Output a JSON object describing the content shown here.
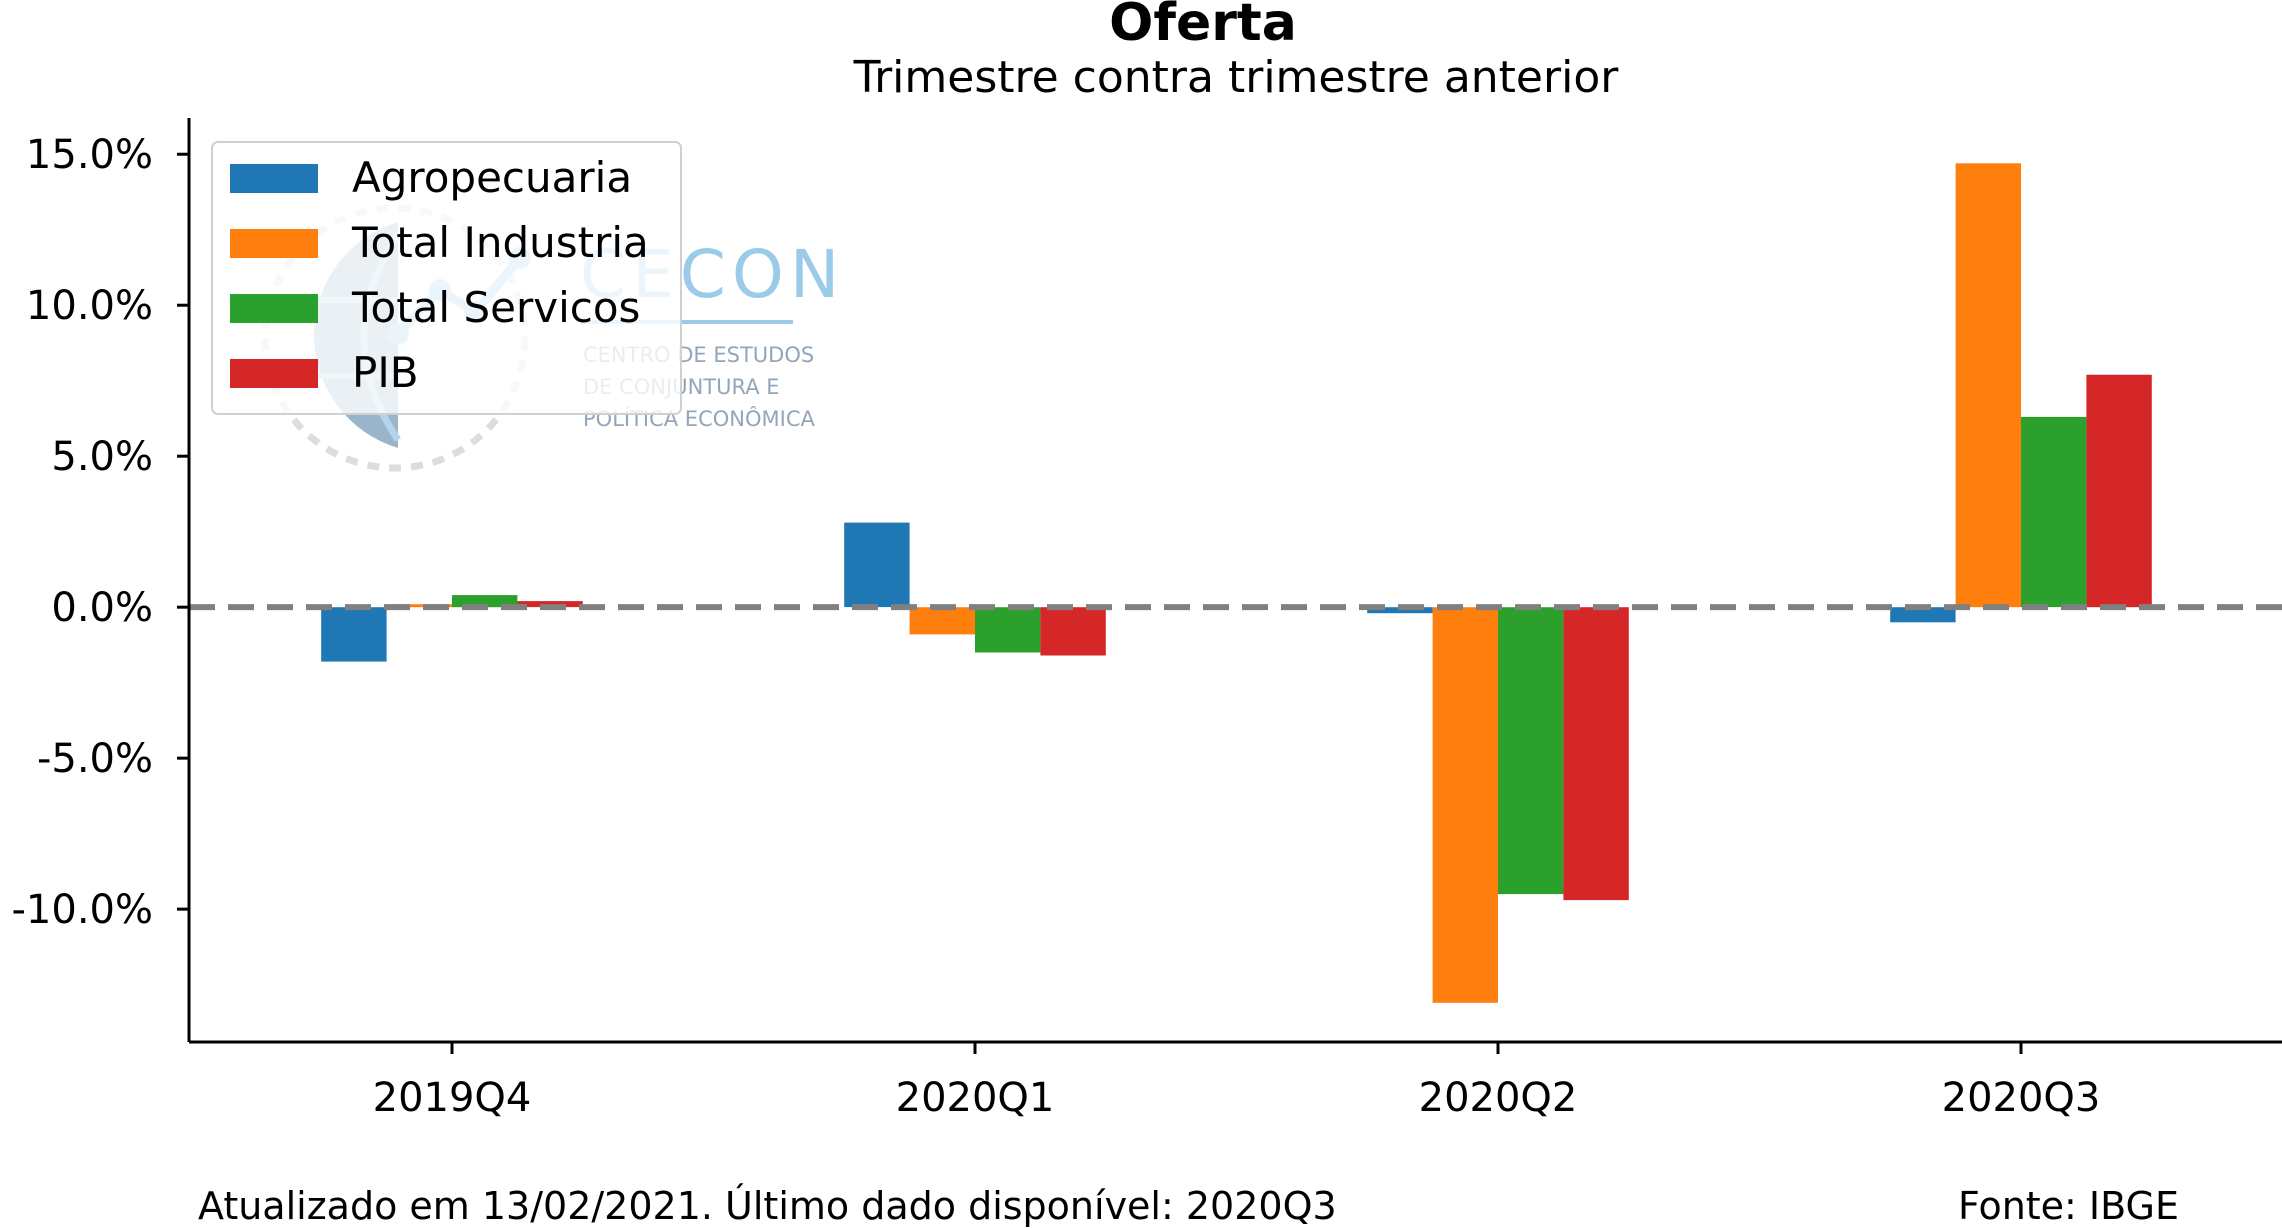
{
  "chart_data": {
    "type": "bar",
    "title": "Oferta",
    "subtitle": "Trimestre contra trimestre anterior",
    "categories": [
      "2019Q4",
      "2020Q1",
      "2020Q2",
      "2020Q3"
    ],
    "series": [
      {
        "name": "Agropecuaria",
        "color": "#1f77b4",
        "values": [
          -1.8,
          2.8,
          -0.2,
          -0.5
        ]
      },
      {
        "name": "Total Industria",
        "color": "#ff7f0e",
        "values": [
          0.1,
          -0.9,
          -13.1,
          14.7
        ]
      },
      {
        "name": "Total Servicos",
        "color": "#2ca02c",
        "values": [
          0.4,
          -1.5,
          -9.5,
          6.3
        ]
      },
      {
        "name": "PIB",
        "color": "#d62728",
        "values": [
          0.2,
          -1.6,
          -9.7,
          7.7
        ]
      }
    ],
    "y_ticks": [
      -10,
      -5,
      0,
      5,
      10,
      15
    ],
    "y_tick_labels": [
      "-10.0%",
      "-5.0%",
      "0.0%",
      "5.0%",
      "10.0%",
      "15.0%"
    ],
    "ylim": [
      -14.4,
      16.2
    ],
    "reference_line": {
      "value": 0,
      "style": "dashed",
      "color": "#808080"
    },
    "legend_position": "top-left",
    "grid": false
  },
  "watermark": {
    "name": "CECON",
    "lines": [
      "CENTRO DE ESTUDOS",
      "DE CONJUNTURA E",
      "POLÍTICA ECONÔMICA"
    ]
  },
  "footer": {
    "updated": "Atualizado em 13/02/2021. Último dado disponível: 2020Q3",
    "source": "Fonte: IBGE"
  }
}
